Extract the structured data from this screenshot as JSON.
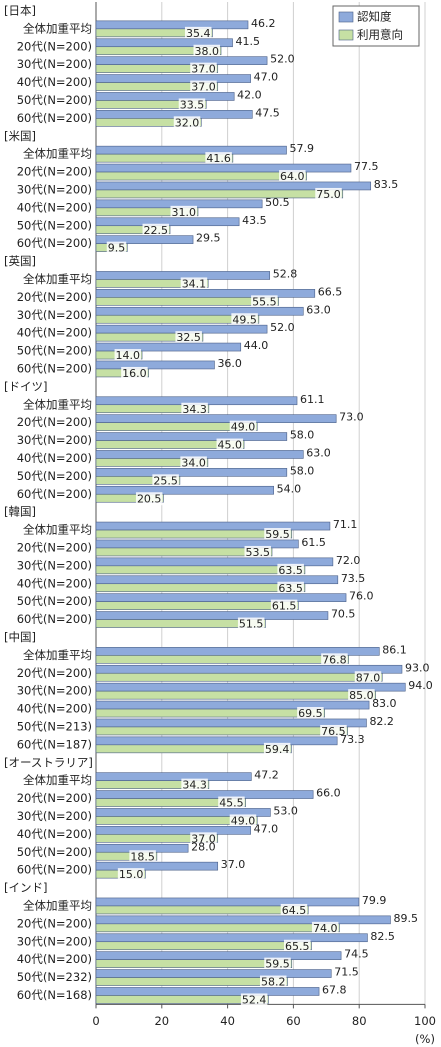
{
  "chart_data": {
    "type": "bar",
    "orientation": "horizontal",
    "xlim": [
      0,
      100
    ],
    "xticks": [
      0,
      20,
      40,
      60,
      80,
      100
    ],
    "x_unit": "(%)",
    "grid": true,
    "legend_position": "upper right",
    "series": [
      {
        "name": "認知度",
        "color": "#8eaadb"
      },
      {
        "name": "利用意向",
        "color": "#c6e0a4"
      }
    ],
    "groups": [
      {
        "label": "[日本]",
        "categories": [
          "全体加重平均",
          "20代(N=200)",
          "30代(N=200)",
          "40代(N=200)",
          "50代(N=200)",
          "60代(N=200)"
        ],
        "series": [
          {
            "values": [
              46.2,
              41.5,
              52.0,
              47.0,
              42.0,
              47.5
            ],
            "value_labels": [
              "46.2",
              "41.5",
              "52.0",
              "47.0",
              "42.0",
              "47.5"
            ]
          },
          {
            "values": [
              35.4,
              38.0,
              37.0,
              37.0,
              33.5,
              32.0
            ],
            "value_labels": [
              "35.4",
              "38.0",
              "37.0",
              "37.0",
              "33.5",
              "32.0"
            ]
          }
        ]
      },
      {
        "label": "[米国]",
        "categories": [
          "全体加重平均",
          "20代(N=200)",
          "30代(N=200)",
          "40代(N=200)",
          "50代(N=200)",
          "60代(N=200)"
        ],
        "series": [
          {
            "values": [
              57.9,
              77.5,
              83.5,
              50.5,
              43.5,
              29.5
            ],
            "value_labels": [
              "57.9",
              "77.5",
              "83.5",
              "50.5",
              "43.5",
              "29.5"
            ]
          },
          {
            "values": [
              41.6,
              64.0,
              75.0,
              31.0,
              22.5,
              9.5
            ],
            "value_labels": [
              "41.6",
              "64.0",
              "75.0",
              "31.0",
              "22.5",
              "9.5"
            ]
          }
        ]
      },
      {
        "label": "[英国]",
        "categories": [
          "全体加重平均",
          "20代(N=200)",
          "30代(N=200)",
          "40代(N=200)",
          "50代(N=200)",
          "60代(N=200)"
        ],
        "series": [
          {
            "values": [
              52.8,
              66.5,
              63.0,
              52.0,
              44.0,
              36.0
            ],
            "value_labels": [
              "52.8",
              "66.5",
              "63.0",
              "52.0",
              "44.0",
              "36.0"
            ]
          },
          {
            "values": [
              34.1,
              55.5,
              49.5,
              32.5,
              14.0,
              16.0
            ],
            "value_labels": [
              "34.1",
              "55.5",
              "49.5",
              "32.5",
              "14.0",
              "16.0"
            ]
          }
        ]
      },
      {
        "label": "[ドイツ]",
        "categories": [
          "全体加重平均",
          "20代(N=200)",
          "30代(N=200)",
          "40代(N=200)",
          "50代(N=200)",
          "60代(N=200)"
        ],
        "series": [
          {
            "values": [
              61.1,
              73.0,
              58.0,
              63.0,
              58.0,
              54.0
            ],
            "value_labels": [
              "61.1",
              "73.0",
              "58.0",
              "63.0",
              "58.0",
              "54.0"
            ]
          },
          {
            "values": [
              34.3,
              49.0,
              45.0,
              34.0,
              25.5,
              20.5
            ],
            "value_labels": [
              "34.3",
              "49.0",
              "45.0",
              "34.0",
              "25.5",
              "20.5"
            ]
          }
        ]
      },
      {
        "label": "[韓国]",
        "categories": [
          "全体加重平均",
          "20代(N=200)",
          "30代(N=200)",
          "40代(N=200)",
          "50代(N=200)",
          "60代(N=200)"
        ],
        "series": [
          {
            "values": [
              71.1,
              61.5,
              72.0,
              73.5,
              76.0,
              70.5
            ],
            "value_labels": [
              "71.1",
              "61.5",
              "72.0",
              "73.5",
              "76.0",
              "70.5"
            ]
          },
          {
            "values": [
              59.5,
              53.5,
              63.5,
              63.5,
              61.5,
              51.5
            ],
            "value_labels": [
              "59.5",
              "53.5",
              "63.5",
              "63.5",
              "61.5",
              "51.5"
            ]
          }
        ]
      },
      {
        "label": "[中国]",
        "categories": [
          "全体加重平均",
          "20代(N=200)",
          "30代(N=200)",
          "40代(N=200)",
          "50代(N=213)",
          "60代(N=187)"
        ],
        "series": [
          {
            "values": [
              86.1,
              93.0,
              94.0,
              83.0,
              82.2,
              73.3
            ],
            "value_labels": [
              "86.1",
              "93.0",
              "94.0",
              "83.0",
              "82.2",
              "73.3"
            ]
          },
          {
            "values": [
              76.8,
              87.0,
              85.0,
              69.5,
              76.5,
              59.4
            ],
            "value_labels": [
              "76.8",
              "87.0",
              "85.0",
              "69.5",
              "76.5",
              "59.4"
            ]
          }
        ]
      },
      {
        "label": "[オーストラリア]",
        "categories": [
          "全体加重平均",
          "20代(N=200)",
          "30代(N=200)",
          "40代(N=200)",
          "50代(N=200)",
          "60代(N=200)"
        ],
        "series": [
          {
            "values": [
              47.2,
              66.0,
              53.0,
              47.0,
              28.0,
              37.0
            ],
            "value_labels": [
              "47.2",
              "66.0",
              "53.0",
              "47.0",
              "28.0",
              "37.0"
            ]
          },
          {
            "values": [
              34.3,
              45.5,
              49.0,
              37.0,
              18.5,
              15.0
            ],
            "value_labels": [
              "34.3",
              "45.5",
              "49.0",
              "37.0",
              "18.5",
              "15.0"
            ]
          }
        ]
      },
      {
        "label": "[インド]",
        "categories": [
          "全体加重平均",
          "20代(N=200)",
          "30代(N=200)",
          "40代(N=200)",
          "50代(N=232)",
          "60代(N=168)"
        ],
        "series": [
          {
            "values": [
              79.9,
              89.5,
              82.5,
              74.5,
              71.5,
              67.8
            ],
            "value_labels": [
              "79.9",
              "89.5",
              "82.5",
              "74.5",
              "71.5",
              "67.8"
            ]
          },
          {
            "values": [
              64.5,
              74.0,
              65.5,
              59.5,
              58.2,
              52.4
            ],
            "value_labels": [
              "64.5",
              "74.0",
              "65.5",
              "59.5",
              "58.2",
              "52.4"
            ]
          }
        ]
      }
    ]
  }
}
